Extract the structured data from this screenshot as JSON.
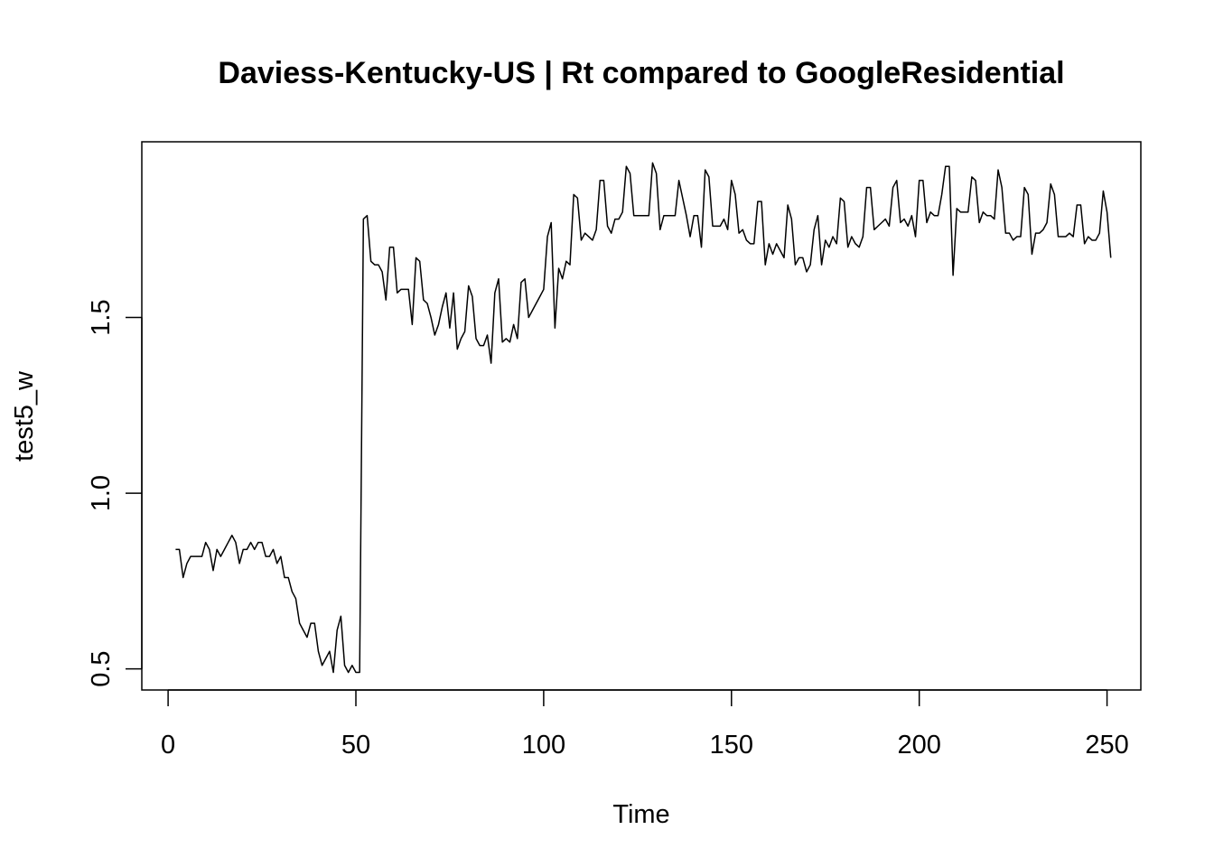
{
  "chart_data": {
    "type": "line",
    "title": "Daviess-Kentucky-US | Rt compared to GoogleResidential",
    "xlabel": "Time",
    "ylabel": "test5_w",
    "xlim": [
      -7,
      259
    ],
    "ylim": [
      0.44,
      2.0
    ],
    "x_ticks": [
      0,
      50,
      100,
      150,
      200,
      250
    ],
    "y_ticks": [
      0.5,
      1.0,
      1.5
    ],
    "x_tick_labels": [
      "0",
      "50",
      "100",
      "150",
      "200",
      "250"
    ],
    "y_tick_labels": [
      "0.5",
      "1.0",
      "1.5"
    ],
    "grid": false,
    "legend": "none",
    "line_color": "#000000",
    "series": [
      {
        "x_start": 2,
        "x_step": 1,
        "values": [
          0.84,
          0.84,
          0.76,
          0.8,
          0.82,
          0.82,
          0.82,
          0.82,
          0.86,
          0.84,
          0.78,
          0.84,
          0.82,
          0.84,
          0.86,
          0.88,
          0.86,
          0.8,
          0.84,
          0.84,
          0.86,
          0.84,
          0.86,
          0.86,
          0.82,
          0.82,
          0.84,
          0.8,
          0.82,
          0.76,
          0.76,
          0.72,
          0.7,
          0.63,
          0.61,
          0.59,
          0.63,
          0.63,
          0.55,
          0.51,
          0.53,
          0.55,
          0.49,
          0.61,
          0.65,
          0.51,
          0.49,
          0.51,
          0.49,
          0.49,
          1.78,
          1.79,
          1.66,
          1.65,
          1.65,
          1.63,
          1.55,
          1.7,
          1.7,
          1.57,
          1.58,
          1.58,
          1.58,
          1.48,
          1.67,
          1.66,
          1.55,
          1.54,
          1.5,
          1.45,
          1.48,
          1.53,
          1.57,
          1.47,
          1.57,
          1.41,
          1.44,
          1.46,
          1.59,
          1.56,
          1.44,
          1.42,
          1.42,
          1.45,
          1.37,
          1.57,
          1.61,
          1.43,
          1.44,
          1.43,
          1.48,
          1.44,
          1.6,
          1.61,
          1.5,
          1.52,
          1.54,
          1.56,
          1.58,
          1.73,
          1.77,
          1.47,
          1.64,
          1.61,
          1.66,
          1.65,
          1.85,
          1.84,
          1.72,
          1.74,
          1.73,
          1.72,
          1.75,
          1.89,
          1.89,
          1.76,
          1.74,
          1.78,
          1.78,
          1.8,
          1.93,
          1.91,
          1.79,
          1.79,
          1.79,
          1.79,
          1.79,
          1.94,
          1.91,
          1.75,
          1.79,
          1.79,
          1.79,
          1.79,
          1.89,
          1.84,
          1.79,
          1.73,
          1.79,
          1.79,
          1.7,
          1.92,
          1.9,
          1.76,
          1.76,
          1.76,
          1.78,
          1.75,
          1.89,
          1.85,
          1.74,
          1.75,
          1.72,
          1.71,
          1.71,
          1.83,
          1.83,
          1.65,
          1.71,
          1.68,
          1.71,
          1.69,
          1.67,
          1.82,
          1.78,
          1.65,
          1.67,
          1.67,
          1.63,
          1.65,
          1.75,
          1.79,
          1.65,
          1.72,
          1.7,
          1.73,
          1.71,
          1.84,
          1.83,
          1.7,
          1.73,
          1.71,
          1.7,
          1.73,
          1.87,
          1.87,
          1.75,
          1.76,
          1.77,
          1.78,
          1.76,
          1.87,
          1.89,
          1.77,
          1.78,
          1.76,
          1.79,
          1.73,
          1.89,
          1.89,
          1.77,
          1.8,
          1.79,
          1.79,
          1.85,
          1.93,
          1.93,
          1.62,
          1.81,
          1.8,
          1.8,
          1.8,
          1.9,
          1.89,
          1.77,
          1.8,
          1.79,
          1.79,
          1.78,
          1.92,
          1.87,
          1.74,
          1.74,
          1.72,
          1.73,
          1.73,
          1.87,
          1.85,
          1.68,
          1.74,
          1.74,
          1.75,
          1.77,
          1.88,
          1.85,
          1.73,
          1.73,
          1.73,
          1.74,
          1.73,
          1.82,
          1.82,
          1.71,
          1.73,
          1.72,
          1.72,
          1.74,
          1.86,
          1.8,
          1.67
        ]
      }
    ]
  }
}
